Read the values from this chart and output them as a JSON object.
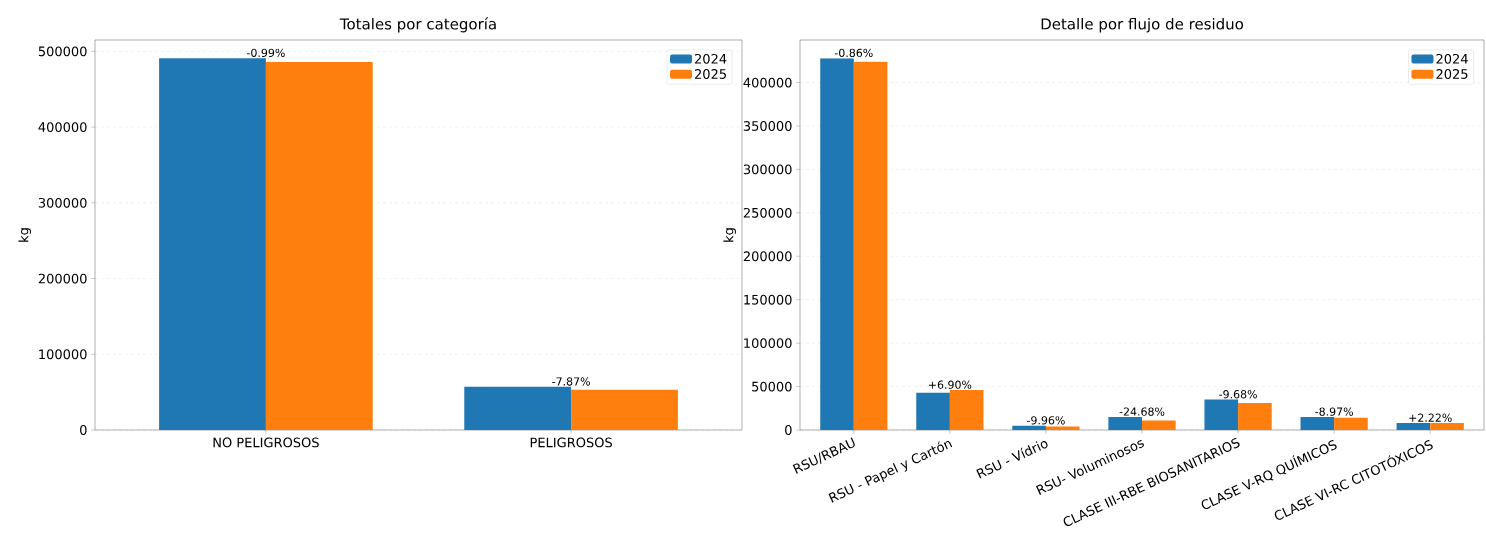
{
  "chart_data": [
    {
      "type": "bar",
      "title": "Totales por categoría",
      "ylabel": "kg",
      "categories": [
        "NO PELIGROSOS",
        "PELIGROSOS"
      ],
      "series": [
        {
          "name": "2024",
          "color": "#1f77b4",
          "values": [
            491000,
            57000
          ]
        },
        {
          "name": "2025",
          "color": "#ff7f0e",
          "values": [
            486000,
            53000
          ]
        }
      ],
      "ylim": [
        0,
        515000
      ],
      "yticks": [
        0,
        100000,
        200000,
        300000,
        400000,
        500000
      ],
      "grid": "y",
      "legend": "top right",
      "annotations": [
        {
          "text": "-0.99%",
          "x": "NO PELIGROSOS",
          "y": 491000
        },
        {
          "text": "-7.87%",
          "x": "PELIGROSOS",
          "y": 57000
        }
      ]
    },
    {
      "type": "bar",
      "title": "Detalle por flujo de residuo",
      "ylabel": "kg",
      "categories": [
        "RSU/RBAU",
        "RSU - Papel y Cartón",
        "RSU - Vídrio",
        "RSU- Voluminosos",
        "CLASE III-RBE BIOSANITARIOS",
        "CLASE V-RQ QUÍMICOS",
        "CLASE VI-RC CITOTÓXICOS"
      ],
      "series": [
        {
          "name": "2024",
          "color": "#1f77b4",
          "values": [
            428000,
            43000,
            5000,
            15000,
            35000,
            15000,
            8000
          ]
        },
        {
          "name": "2025",
          "color": "#ff7f0e",
          "values": [
            424000,
            46000,
            4000,
            11000,
            31000,
            14000,
            8000
          ]
        }
      ],
      "ylim": [
        0,
        449000
      ],
      "yticks": [
        0,
        50000,
        100000,
        150000,
        200000,
        250000,
        300000,
        350000,
        400000
      ],
      "grid": "y",
      "legend": "top right",
      "annotations": [
        {
          "text": "-0.86%",
          "x": "RSU/RBAU",
          "y": 428000
        },
        {
          "text": "+6.90%",
          "x": "RSU - Papel y Cartón",
          "y": 46000
        },
        {
          "text": "-9.96%",
          "x": "RSU - Vídrio",
          "y": 5000
        },
        {
          "text": "-24.68%",
          "x": "RSU- Voluminosos",
          "y": 15000
        },
        {
          "text": "-9.68%",
          "x": "CLASE III-RBE BIOSANITARIOS",
          "y": 35000
        },
        {
          "text": "-8.97%",
          "x": "CLASE V-RQ QUÍMICOS",
          "y": 15000
        },
        {
          "text": "+2.22%",
          "x": "CLASE VI-RC CITOTÓXICOS",
          "y": 8000
        }
      ]
    }
  ]
}
